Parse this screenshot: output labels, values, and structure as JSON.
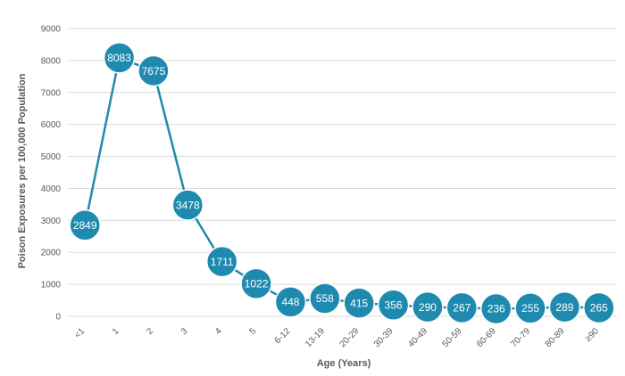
{
  "chart_data": {
    "type": "line",
    "categories": [
      "<1",
      "1",
      "2",
      "3",
      "4",
      "5",
      "6-12",
      "13-19",
      "20-29",
      "30-39",
      "40-49",
      "50-59",
      "60-69",
      "70-79",
      "80-89",
      "≥90"
    ],
    "values": [
      2849,
      8083,
      7675,
      3478,
      1711,
      1022,
      448,
      558,
      415,
      356,
      290,
      267,
      236,
      255,
      289,
      265
    ],
    "data_labels": [
      "2849",
      "8083",
      "7675",
      "3478",
      "1711",
      "1022",
      "448",
      "558",
      "415",
      "356",
      "290",
      "267",
      "236",
      "255",
      "289",
      "265"
    ],
    "xlabel": "Age (Years)",
    "ylabel": "Poison Exposures per 100,000 Population",
    "ylim": [
      0,
      9000
    ],
    "yticks": [
      "0",
      "1000",
      "2000",
      "3000",
      "4000",
      "5000",
      "6000",
      "7000",
      "8000",
      "9000"
    ],
    "grid": true,
    "colors": {
      "series": "#1F8AAF",
      "marker_border": "#ffffff",
      "grid": "#d9d9d9",
      "text": "#595959"
    }
  }
}
